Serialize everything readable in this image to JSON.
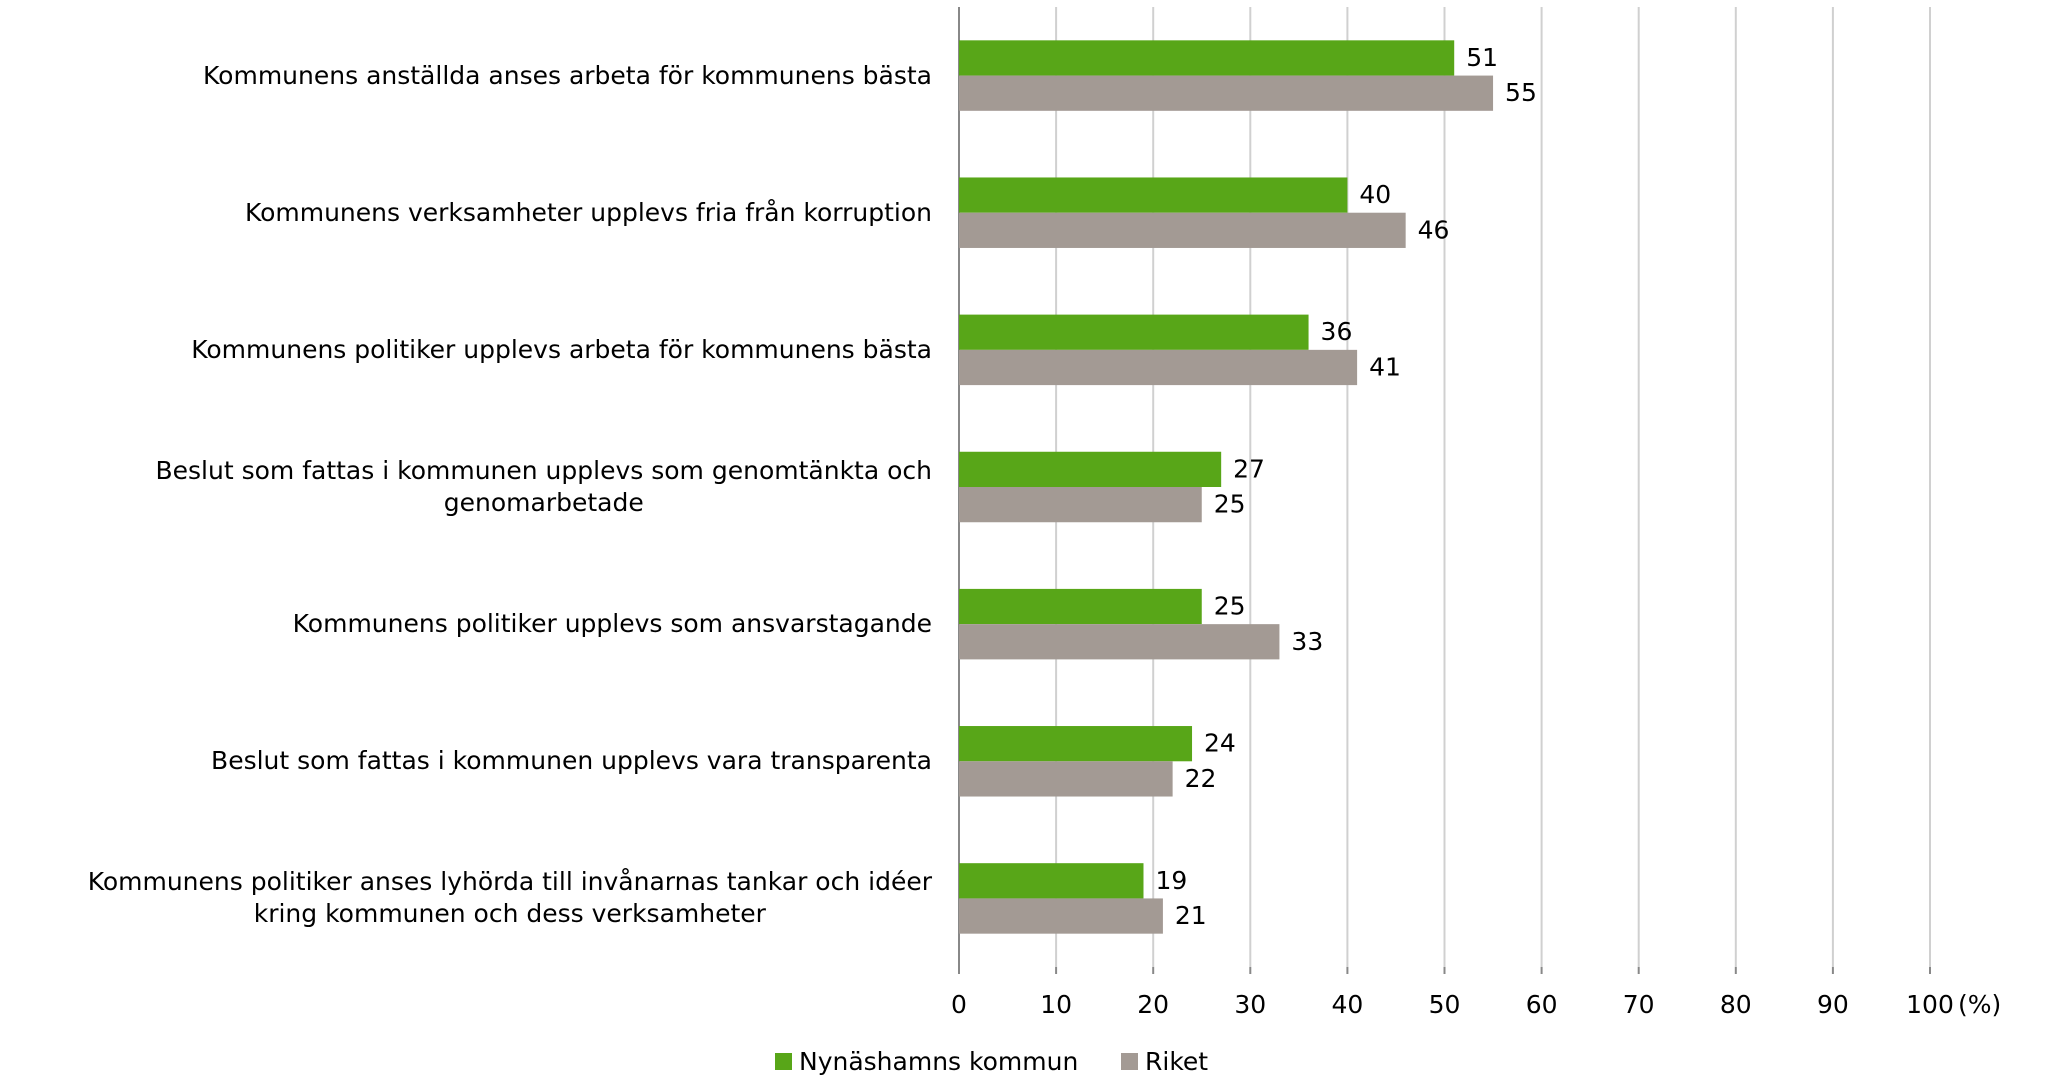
{
  "chart_data": {
    "type": "hbar",
    "categories": [
      "Kommunens anställda anses arbeta för kommunens bästa",
      "Kommunens verksamheter upplevs fria från korruption",
      "Kommunens politiker upplevs arbeta för kommunens bästa",
      "Beslut som fattas i kommunen upplevs som genomtänkta och\ngenomarbetade",
      "Kommunens politiker upplevs som ansvarstagande",
      "Beslut som fattas i kommunen upplevs vara transparenta",
      "Kommunens politiker anses lyhörda till invånarnas tankar och idéer\nkring kommunen och dess verksamheter"
    ],
    "series": [
      {
        "name": "Nynäshamns kommun",
        "color": "#58a618",
        "values": [
          51,
          40,
          36,
          27,
          25,
          24,
          19
        ]
      },
      {
        "name": "Riket",
        "color": "#a39a94",
        "values": [
          55,
          46,
          41,
          25,
          33,
          22,
          21
        ]
      }
    ],
    "xlabel": "(%)",
    "xlim": [
      0,
      100
    ],
    "xticks": [
      0,
      10,
      20,
      30,
      40,
      50,
      60,
      70,
      80,
      90,
      100
    ],
    "grid": true,
    "legend": "bottom"
  }
}
